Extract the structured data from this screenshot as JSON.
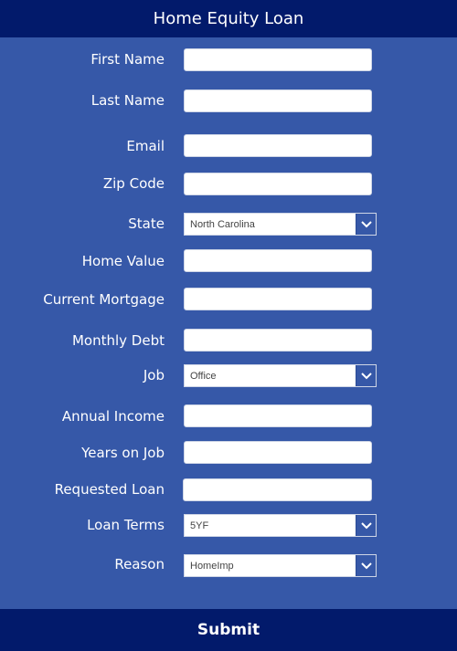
{
  "header": {
    "title": "Home Equity Loan"
  },
  "fields": {
    "first_name": {
      "label": "First Name",
      "value": ""
    },
    "last_name": {
      "label": "Last Name",
      "value": ""
    },
    "email": {
      "label": "Email",
      "value": ""
    },
    "zip_code": {
      "label": "Zip Code",
      "value": ""
    },
    "state": {
      "label": "State",
      "selected": "North Carolina"
    },
    "home_value": {
      "label": "Home Value",
      "value": ""
    },
    "current_mortgage": {
      "label": "Current Mortgage",
      "value": ""
    },
    "monthly_debt": {
      "label": "Monthly Debt",
      "value": ""
    },
    "job": {
      "label": "Job",
      "selected": "Office"
    },
    "annual_income": {
      "label": "Annual Income",
      "value": ""
    },
    "years_on_job": {
      "label": "Years on Job",
      "value": ""
    },
    "requested_loan": {
      "label": "Requested Loan",
      "value": ""
    },
    "loan_terms": {
      "label": "Loan Terms",
      "selected": "5YF"
    },
    "reason": {
      "label": "Reason",
      "selected": "HomeImp"
    }
  },
  "footer": {
    "submit_label": "Submit"
  },
  "colors": {
    "background": "#3658a8",
    "header_bg": "#021a6b",
    "footer_bg": "#021a6b",
    "text": "#ffffff",
    "field_bg": "#ffffff"
  },
  "icons": {
    "dropdown": "chevron-down-icon"
  }
}
